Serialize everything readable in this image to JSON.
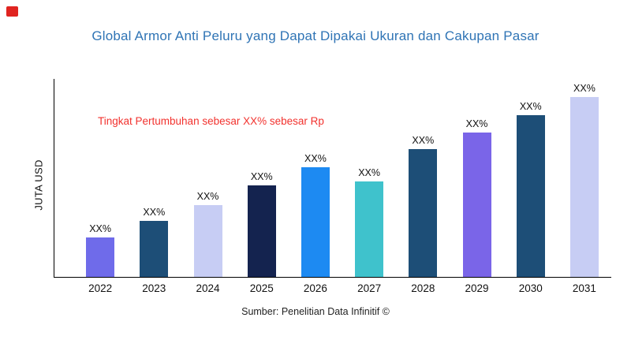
{
  "page": {
    "logo_color": "#e02420"
  },
  "header": {
    "title": "Global Armor Anti Peluru yang Dapat Dipakai Ukuran dan Cakupan Pasar",
    "title_color": "#2f74b5"
  },
  "annotation": {
    "text": "Tingkat Pertumbuhan sebesar XX% sebesar Rp",
    "color": "#f2322e"
  },
  "chart_data": {
    "type": "bar",
    "title": "Global Armor Anti Peluru yang Dapat Dipakai Ukuran dan Cakupan Pasar",
    "xlabel": "",
    "ylabel": "JUTA USD",
    "categories": [
      "2022",
      "2023",
      "2024",
      "2025",
      "2026",
      "2027",
      "2028",
      "2029",
      "2030",
      "2031"
    ],
    "values": [
      22,
      31,
      40,
      51,
      61,
      53,
      71,
      80,
      90,
      100
    ],
    "bar_labels": [
      "XX%",
      "XX%",
      "XX%",
      "XX%",
      "XX%",
      "XX%",
      "XX%",
      "XX%",
      "XX%",
      "XX%"
    ],
    "bar_colors": [
      "#6f6bea",
      "#1d4e77",
      "#c7cdf4",
      "#14234f",
      "#1d8af2",
      "#3fc2cc",
      "#1d4e77",
      "#7a65e8",
      "#1d4e77",
      "#c7cdf4"
    ],
    "ylim": [
      0,
      110
    ],
    "grid": false,
    "legend": "none",
    "annotation": "Tingkat Pertumbuhan sebesar XX% sebesar Rp"
  },
  "footer": {
    "source": "Sumber: Penelitian Data Infinitif ©"
  }
}
